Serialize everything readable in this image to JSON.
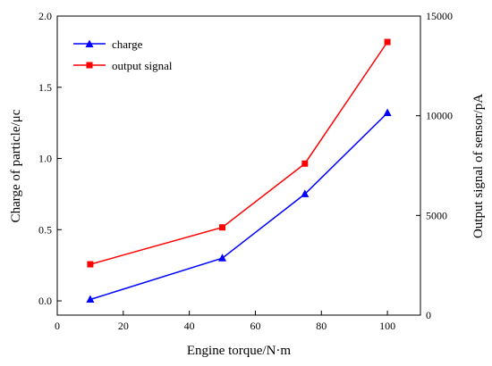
{
  "chart_data": {
    "type": "line",
    "title": "",
    "xlabel": "Engine torque/N·m",
    "ylabel": "Charge of particle/μc",
    "y2label": "Output signal of sensor/pA",
    "xlim": [
      0,
      110
    ],
    "xticks": [
      "0",
      "20",
      "40",
      "60",
      "80",
      "100"
    ],
    "ylim": [
      -0.1,
      2.0
    ],
    "yticks": [
      "0.0",
      "0.5",
      "1.0",
      "1.5",
      "2.0"
    ],
    "y2lim": [
      0,
      15000
    ],
    "y2ticks": [
      "0",
      "5000",
      "10000",
      "15000"
    ],
    "grid": false,
    "legend_position": "top-left",
    "series": [
      {
        "name": "charge",
        "axis": "left",
        "color": "#0000ff",
        "marker": "triangle",
        "x": [
          10,
          50,
          75,
          100
        ],
        "y": [
          0.01,
          0.3,
          0.75,
          1.32
        ]
      },
      {
        "name": "output signal",
        "axis": "right",
        "color": "#ff0000",
        "marker": "square",
        "x": [
          10,
          50,
          75,
          100
        ],
        "y": [
          2550,
          4400,
          7600,
          13700
        ]
      }
    ]
  }
}
